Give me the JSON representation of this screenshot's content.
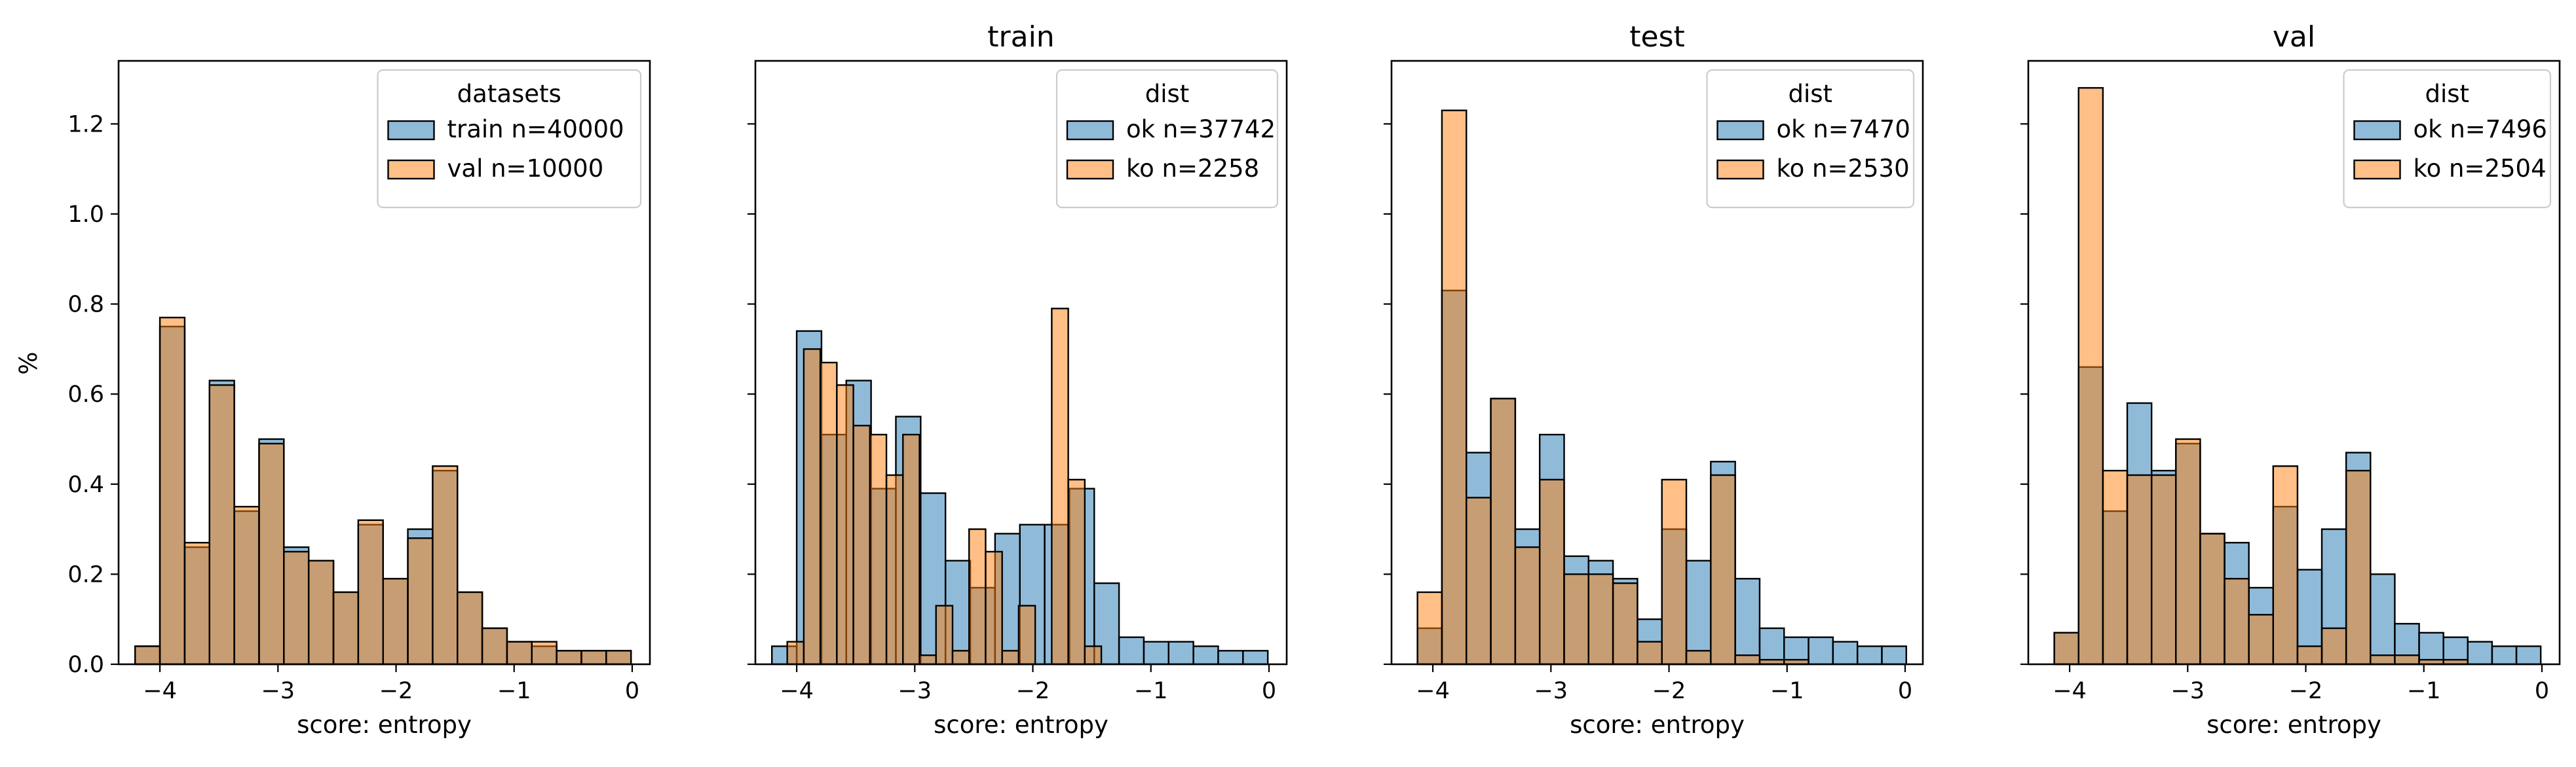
{
  "figure": {
    "ylabel": "%",
    "colors": {
      "series_a": "#1f77b4",
      "series_b": "#ff7f0e"
    }
  },
  "chart_data": [
    {
      "type": "histogram",
      "title": "",
      "xlabel": "score: entropy",
      "ylabel": "%",
      "xlim": [
        -4.35,
        0.15
      ],
      "ylim": [
        0,
        1.34
      ],
      "xticks": [
        -4,
        -3,
        -2,
        -1,
        0
      ],
      "xtick_labels": [
        "−4",
        "−3",
        "−2",
        "−1",
        "0"
      ],
      "yticks": [
        0.0,
        0.2,
        0.4,
        0.6,
        0.8,
        1.0,
        1.2
      ],
      "ytick_labels": [
        "0.0",
        "0.2",
        "0.4",
        "0.6",
        "0.8",
        "1.0",
        "1.2"
      ],
      "legend": {
        "title": "datasets",
        "position": "upper right"
      },
      "series": [
        {
          "name": "train n=40000",
          "color": "#1f77b4",
          "bin_start": -4.21,
          "bin_width": 0.21,
          "values": [
            0.04,
            0.75,
            0.26,
            0.63,
            0.34,
            0.5,
            0.26,
            0.23,
            0.16,
            0.31,
            0.19,
            0.3,
            0.43,
            0.16,
            0.08,
            0.05,
            0.04,
            0.03,
            0.03,
            0.03
          ]
        },
        {
          "name": "val n=10000",
          "color": "#ff7f0e",
          "bin_start": -4.21,
          "bin_width": 0.21,
          "values": [
            0.04,
            0.77,
            0.27,
            0.62,
            0.35,
            0.49,
            0.25,
            0.23,
            0.16,
            0.32,
            0.19,
            0.28,
            0.44,
            0.16,
            0.08,
            0.05,
            0.05,
            0.03,
            0.03,
            0.03
          ]
        }
      ]
    },
    {
      "type": "histogram",
      "title": "train",
      "xlabel": "score: entropy",
      "ylabel": "",
      "xlim": [
        -4.35,
        0.15
      ],
      "ylim": [
        0,
        1.34
      ],
      "xticks": [
        -4,
        -3,
        -2,
        -1,
        0
      ],
      "xtick_labels": [
        "−4",
        "−3",
        "−2",
        "−1",
        "0"
      ],
      "yticks": [
        0.0,
        0.2,
        0.4,
        0.6,
        0.8,
        1.0,
        1.2
      ],
      "ytick_labels": [],
      "legend": {
        "title": "dist",
        "position": "upper right"
      },
      "series": [
        {
          "name": "ok n=37742",
          "color": "#1f77b4",
          "bin_start": -4.21,
          "bin_width": 0.21,
          "values": [
            0.04,
            0.74,
            0.51,
            0.63,
            0.39,
            0.55,
            0.38,
            0.23,
            0.17,
            0.29,
            0.31,
            0.31,
            0.39,
            0.18,
            0.06,
            0.05,
            0.05,
            0.04,
            0.03,
            0.03
          ]
        },
        {
          "name": "ko n=2258",
          "color": "#ff7f0e",
          "bin_start": -4.08,
          "bin_width": 0.14,
          "values": [
            0.05,
            0.7,
            0.67,
            0.62,
            0.53,
            0.51,
            0.42,
            0.51,
            0.02,
            0.13,
            0.03,
            0.3,
            0.25,
            0.03,
            0.13,
            0.0,
            0.79,
            0.41,
            0.04
          ]
        }
      ]
    },
    {
      "type": "histogram",
      "title": "test",
      "xlabel": "score: entropy",
      "ylabel": "",
      "xlim": [
        -4.35,
        0.15
      ],
      "ylim": [
        0,
        1.34
      ],
      "xticks": [
        -4,
        -3,
        -2,
        -1,
        0
      ],
      "xtick_labels": [
        "−4",
        "−3",
        "−2",
        "−1",
        "0"
      ],
      "yticks": [
        0.0,
        0.2,
        0.4,
        0.6,
        0.8,
        1.0,
        1.2
      ],
      "ytick_labels": [],
      "legend": {
        "title": "dist",
        "position": "upper right"
      },
      "series": [
        {
          "name": "ok n=7470",
          "color": "#1f77b4",
          "bin_start": -4.13,
          "bin_width": 0.207,
          "values": [
            0.08,
            0.83,
            0.47,
            0.59,
            0.3,
            0.51,
            0.24,
            0.23,
            0.19,
            0.1,
            0.3,
            0.23,
            0.45,
            0.19,
            0.08,
            0.06,
            0.06,
            0.05,
            0.04,
            0.04
          ]
        },
        {
          "name": "ko n=2530",
          "color": "#ff7f0e",
          "bin_start": -4.13,
          "bin_width": 0.207,
          "values": [
            0.16,
            1.23,
            0.37,
            0.59,
            0.26,
            0.41,
            0.2,
            0.2,
            0.18,
            0.05,
            0.41,
            0.03,
            0.42,
            0.02,
            0.01,
            0.01,
            0.0,
            0.0,
            0.0,
            0.0
          ]
        }
      ]
    },
    {
      "type": "histogram",
      "title": "val",
      "xlabel": "score: entropy",
      "ylabel": "",
      "xlim": [
        -4.35,
        0.15
      ],
      "ylim": [
        0,
        1.34
      ],
      "xticks": [
        -4,
        -3,
        -2,
        -1,
        0
      ],
      "xtick_labels": [
        "−4",
        "−3",
        "−2",
        "−1",
        "0"
      ],
      "yticks": [
        0.0,
        0.2,
        0.4,
        0.6,
        0.8,
        1.0,
        1.2
      ],
      "ytick_labels": [],
      "legend": {
        "title": "dist",
        "position": "upper right"
      },
      "series": [
        {
          "name": "ok n=7496",
          "color": "#1f77b4",
          "bin_start": -4.13,
          "bin_width": 0.206,
          "values": [
            0.07,
            0.66,
            0.34,
            0.58,
            0.43,
            0.49,
            0.29,
            0.27,
            0.17,
            0.35,
            0.21,
            0.3,
            0.47,
            0.2,
            0.09,
            0.07,
            0.06,
            0.05,
            0.04,
            0.04
          ]
        },
        {
          "name": "ko n=2504",
          "color": "#ff7f0e",
          "bin_start": -4.13,
          "bin_width": 0.206,
          "values": [
            0.07,
            1.28,
            0.43,
            0.42,
            0.42,
            0.5,
            0.29,
            0.19,
            0.11,
            0.44,
            0.04,
            0.08,
            0.43,
            0.02,
            0.02,
            0.01,
            0.01,
            0.0,
            0.0,
            0.0
          ]
        }
      ]
    }
  ]
}
